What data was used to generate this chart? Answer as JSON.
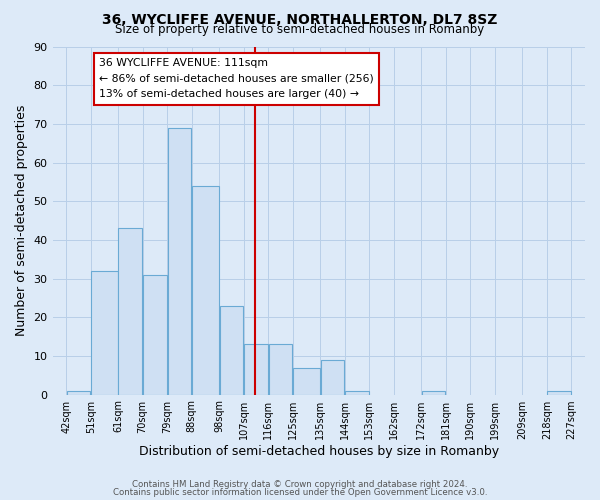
{
  "title_line1": "36, WYCLIFFE AVENUE, NORTHALLERTON, DL7 8SZ",
  "title_line2": "Size of property relative to semi-detached houses in Romanby",
  "xlabel": "Distribution of semi-detached houses by size in Romanby",
  "ylabel": "Number of semi-detached properties",
  "bar_left_edges": [
    42,
    51,
    61,
    70,
    79,
    88,
    98,
    107,
    116,
    125,
    135,
    144,
    153,
    162,
    172,
    181,
    190,
    199,
    209,
    218
  ],
  "bar_widths": [
    9,
    10,
    9,
    9,
    9,
    10,
    9,
    9,
    9,
    10,
    9,
    9,
    9,
    10,
    9,
    9,
    9,
    10,
    9,
    9
  ],
  "bar_heights": [
    1,
    32,
    43,
    31,
    69,
    54,
    23,
    13,
    13,
    7,
    9,
    1,
    0,
    0,
    1,
    0,
    0,
    0,
    0,
    1
  ],
  "tick_labels": [
    "42sqm",
    "51sqm",
    "61sqm",
    "70sqm",
    "79sqm",
    "88sqm",
    "98sqm",
    "107sqm",
    "116sqm",
    "125sqm",
    "135sqm",
    "144sqm",
    "153sqm",
    "162sqm",
    "172sqm",
    "181sqm",
    "190sqm",
    "199sqm",
    "209sqm",
    "218sqm",
    "227sqm"
  ],
  "tick_positions": [
    42,
    51,
    61,
    70,
    79,
    88,
    98,
    107,
    116,
    125,
    135,
    144,
    153,
    162,
    172,
    181,
    190,
    199,
    209,
    218,
    227
  ],
  "bar_color": "#cfe0f3",
  "bar_edge_color": "#6aaad4",
  "vline_x": 111,
  "vline_color": "#cc0000",
  "ylim": [
    0,
    90
  ],
  "yticks": [
    0,
    10,
    20,
    30,
    40,
    50,
    60,
    70,
    80,
    90
  ],
  "xlim_left": 37,
  "xlim_right": 232,
  "annotation_title": "36 WYCLIFFE AVENUE: 111sqm",
  "annotation_line1": "← 86% of semi-detached houses are smaller (256)",
  "annotation_line2": "13% of semi-detached houses are larger (40) →",
  "footer_line1": "Contains HM Land Registry data © Crown copyright and database right 2024.",
  "footer_line2": "Contains public sector information licensed under the Open Government Licence v3.0.",
  "background_color": "#ddeaf8",
  "plot_bg_color": "#ddeaf8",
  "grid_color": "#b8cfe8"
}
